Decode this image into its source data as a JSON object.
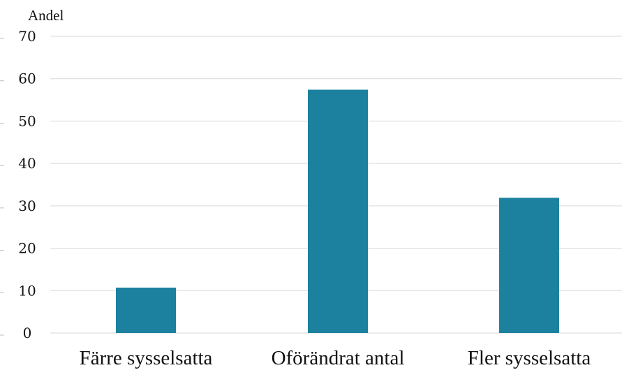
{
  "chart_data": {
    "type": "bar",
    "title": "",
    "ylabel": "Andel",
    "xlabel": "",
    "categories": [
      "Färre sysselsatta",
      "Oförändrat antal",
      "Fler sysselsatta"
    ],
    "values": [
      10.7,
      57.4,
      31.9
    ],
    "ylim": [
      0,
      70
    ],
    "yticks": [
      "0",
      "10",
      "20",
      "30",
      "40",
      "50",
      "60",
      "70"
    ],
    "grid": true,
    "legend": "none",
    "colors": {
      "bar": "#1b819f",
      "grid": "#d9d9d9",
      "text": "#111111"
    }
  }
}
